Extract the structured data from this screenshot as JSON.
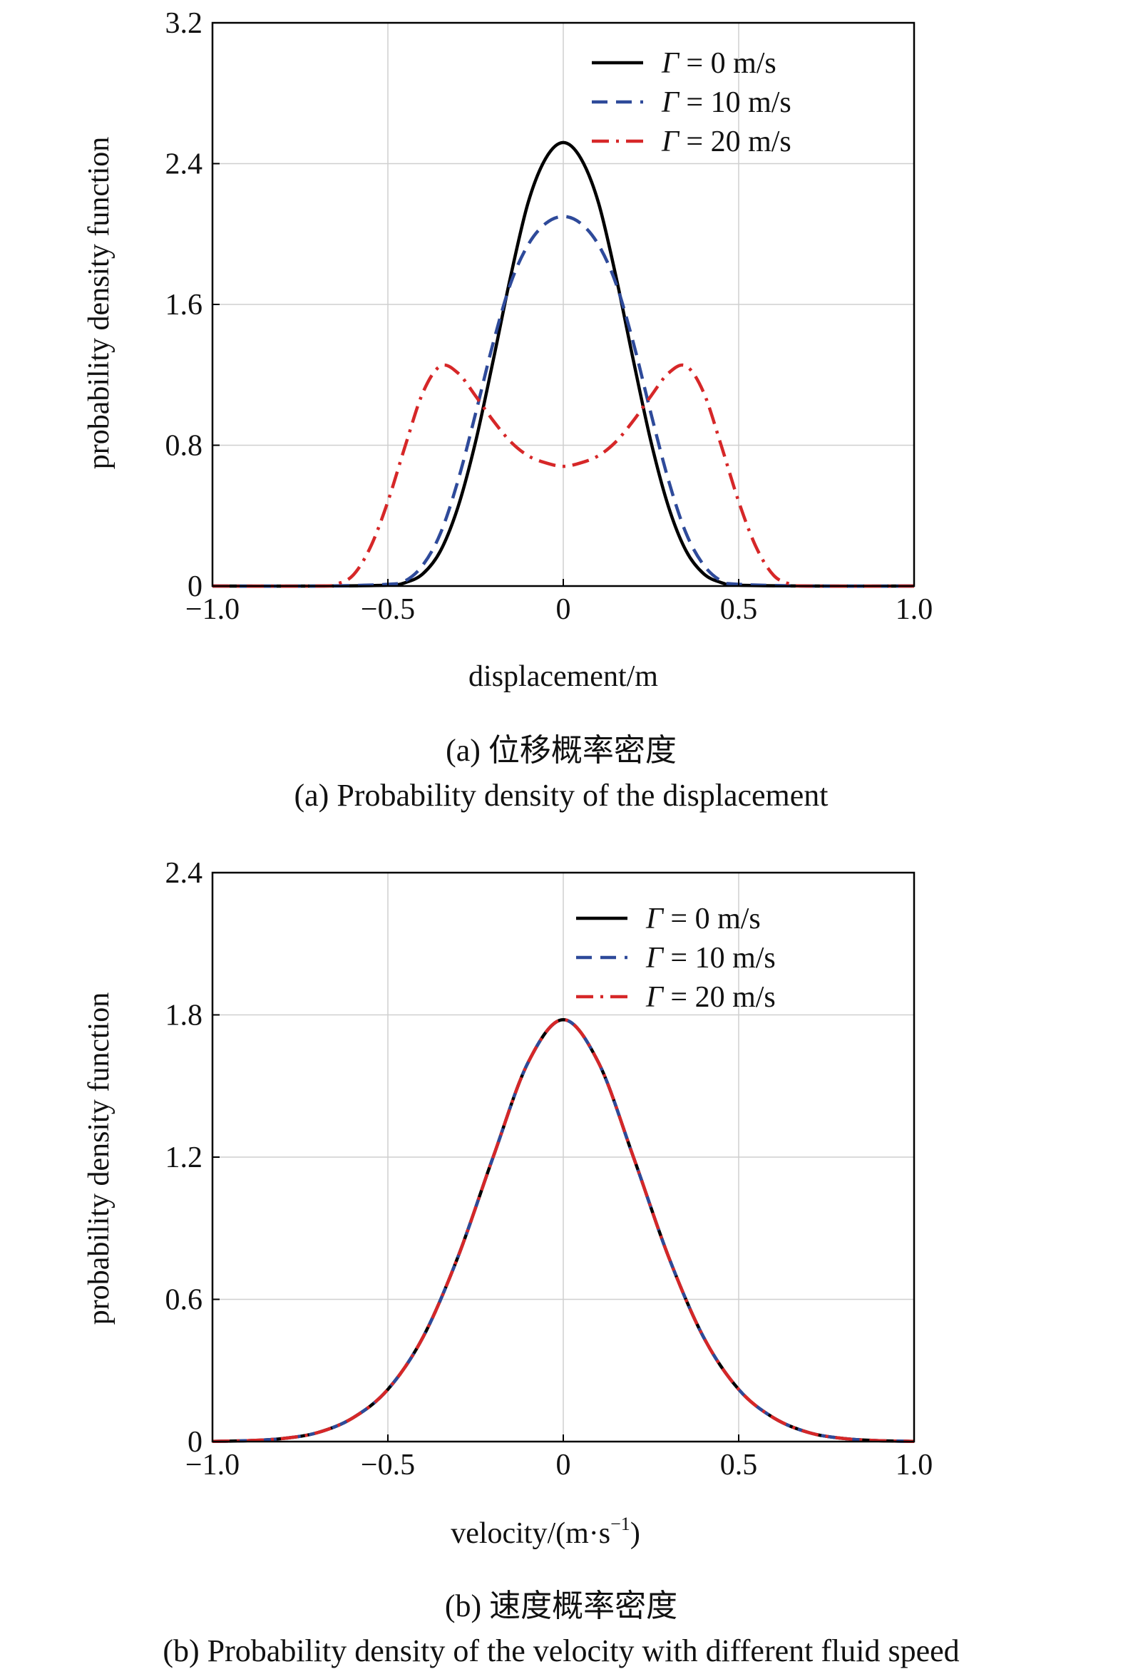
{
  "chart_data": [
    {
      "type": "line",
      "xlabel": "displacement/m",
      "ylabel": "probability density function",
      "caption_cn": "(a) 位移概率密度",
      "caption_en": "(a) Probability density of the displacement",
      "xlim": [
        -1.0,
        1.0
      ],
      "ylim": [
        0,
        3.2
      ],
      "xticks": [
        "−1.0",
        "−0.5",
        "0",
        "0.5",
        "1.0"
      ],
      "xtick_values": [
        -1.0,
        -0.5,
        0,
        0.5,
        1.0
      ],
      "yticks": [
        "0",
        "0.8",
        "1.6",
        "2.4",
        "3.2"
      ],
      "ytick_values": [
        0,
        0.8,
        1.6,
        2.4,
        3.2
      ],
      "grid": true,
      "legend_position": "top-right",
      "series": [
        {
          "name": "Γ = 0 m/s",
          "legend_sym": "Γ",
          "legend_rest": " = 0 m/s",
          "color": "#000000",
          "dash": "solid",
          "x": [
            -1.0,
            -0.7,
            -0.5,
            -0.45,
            -0.4,
            -0.35,
            -0.3,
            -0.25,
            -0.2,
            -0.15,
            -0.1,
            -0.05,
            0,
            0.05,
            0.1,
            0.15,
            0.2,
            0.25,
            0.3,
            0.35,
            0.4,
            0.45,
            0.5,
            0.7,
            1.0
          ],
          "y": [
            0,
            0,
            0.005,
            0.02,
            0.07,
            0.2,
            0.45,
            0.82,
            1.28,
            1.76,
            2.18,
            2.43,
            2.52,
            2.43,
            2.18,
            1.76,
            1.28,
            0.82,
            0.45,
            0.2,
            0.07,
            0.02,
            0.005,
            0,
            0
          ]
        },
        {
          "name": "Γ = 10 m/s",
          "legend_sym": "Γ",
          "legend_rest": " = 10 m/s",
          "color": "#2e4a9a",
          "dash": "dashed",
          "x": [
            -1.0,
            -0.7,
            -0.5,
            -0.45,
            -0.4,
            -0.35,
            -0.3,
            -0.25,
            -0.2,
            -0.15,
            -0.1,
            -0.05,
            0,
            0.05,
            0.1,
            0.15,
            0.2,
            0.25,
            0.3,
            0.35,
            0.4,
            0.45,
            0.5,
            0.7,
            1.0
          ],
          "y": [
            0,
            0,
            0.01,
            0.03,
            0.12,
            0.3,
            0.6,
            0.98,
            1.38,
            1.72,
            1.94,
            2.06,
            2.1,
            2.06,
            1.94,
            1.72,
            1.38,
            0.98,
            0.6,
            0.3,
            0.12,
            0.03,
            0.01,
            0,
            0
          ]
        },
        {
          "name": "Γ = 20 m/s",
          "legend_sym": "Γ",
          "legend_rest": " = 20 m/s",
          "color": "#d62728",
          "dash": "dashdot",
          "x": [
            -1.0,
            -0.7,
            -0.65,
            -0.6,
            -0.55,
            -0.5,
            -0.45,
            -0.4,
            -0.35,
            -0.3,
            -0.25,
            -0.2,
            -0.15,
            -0.1,
            -0.05,
            0,
            0.05,
            0.1,
            0.15,
            0.2,
            0.25,
            0.3,
            0.35,
            0.4,
            0.45,
            0.5,
            0.55,
            0.6,
            0.65,
            0.7,
            1.0
          ],
          "y": [
            0,
            0,
            0.01,
            0.06,
            0.22,
            0.48,
            0.8,
            1.1,
            1.25,
            1.21,
            1.08,
            0.94,
            0.82,
            0.74,
            0.7,
            0.68,
            0.7,
            0.74,
            0.82,
            0.94,
            1.08,
            1.21,
            1.25,
            1.1,
            0.8,
            0.48,
            0.22,
            0.06,
            0.01,
            0,
            0
          ]
        }
      ]
    },
    {
      "type": "line",
      "xlabel": "velocity/(m·s",
      "xlabel_sup": "−1",
      "xlabel_tail": ")",
      "ylabel": "probability density function",
      "caption_cn": "(b) 速度概率密度",
      "caption_en": "(b) Probability density of the velocity with different fluid speed",
      "xlim": [
        -1.0,
        1.0
      ],
      "ylim": [
        0,
        2.4
      ],
      "xticks": [
        "−1.0",
        "−0.5",
        "0",
        "0.5",
        "1.0"
      ],
      "xtick_values": [
        -1.0,
        -0.5,
        0,
        0.5,
        1.0
      ],
      "yticks": [
        "0",
        "0.6",
        "1.2",
        "1.8",
        "2.4"
      ],
      "ytick_values": [
        0,
        0.6,
        1.2,
        1.8,
        2.4
      ],
      "grid": true,
      "legend_position": "top-right",
      "series": [
        {
          "name": "Γ = 0 m/s",
          "legend_sym": "Γ",
          "legend_rest": " = 0 m/s",
          "color": "#000000",
          "dash": "solid",
          "x": [
            -1.0,
            -0.9,
            -0.8,
            -0.7,
            -0.6,
            -0.5,
            -0.4,
            -0.3,
            -0.2,
            -0.1,
            0,
            0.1,
            0.2,
            0.3,
            0.4,
            0.5,
            0.6,
            0.7,
            0.8,
            0.9,
            1.0
          ],
          "y": [
            0.001,
            0.004,
            0.013,
            0.038,
            0.1,
            0.22,
            0.44,
            0.78,
            1.2,
            1.6,
            1.78,
            1.6,
            1.2,
            0.78,
            0.44,
            0.22,
            0.1,
            0.038,
            0.013,
            0.004,
            0.001
          ]
        },
        {
          "name": "Γ = 10 m/s",
          "legend_sym": "Γ",
          "legend_rest": " = 10 m/s",
          "color": "#2e4a9a",
          "dash": "dashed",
          "x": [
            -1.0,
            -0.9,
            -0.8,
            -0.7,
            -0.6,
            -0.5,
            -0.4,
            -0.3,
            -0.2,
            -0.1,
            0,
            0.1,
            0.2,
            0.3,
            0.4,
            0.5,
            0.6,
            0.7,
            0.8,
            0.9,
            1.0
          ],
          "y": [
            0.001,
            0.004,
            0.013,
            0.038,
            0.1,
            0.22,
            0.44,
            0.78,
            1.2,
            1.6,
            1.78,
            1.6,
            1.2,
            0.78,
            0.44,
            0.22,
            0.1,
            0.038,
            0.013,
            0.004,
            0.001
          ]
        },
        {
          "name": "Γ = 20 m/s",
          "legend_sym": "Γ",
          "legend_rest": " = 20 m/s",
          "color": "#d62728",
          "dash": "dashdot",
          "x": [
            -1.0,
            -0.9,
            -0.8,
            -0.7,
            -0.6,
            -0.5,
            -0.4,
            -0.3,
            -0.2,
            -0.1,
            0,
            0.1,
            0.2,
            0.3,
            0.4,
            0.5,
            0.6,
            0.7,
            0.8,
            0.9,
            1.0
          ],
          "y": [
            0.001,
            0.004,
            0.013,
            0.038,
            0.1,
            0.22,
            0.44,
            0.78,
            1.2,
            1.6,
            1.78,
            1.6,
            1.2,
            0.78,
            0.44,
            0.22,
            0.1,
            0.038,
            0.013,
            0.004,
            0.001
          ]
        }
      ]
    }
  ]
}
